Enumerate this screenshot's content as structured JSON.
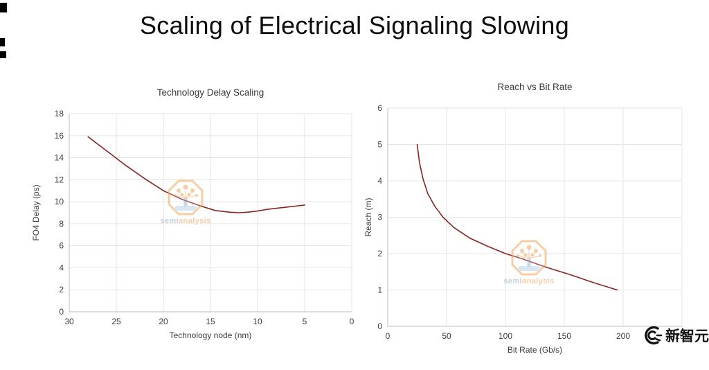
{
  "page": {
    "title": "Scaling of Electrical Signaling Slowing",
    "background": "#ffffff"
  },
  "watermark": {
    "name": "semianalysis",
    "text_semi": "semi",
    "text_analysis": "analysis",
    "accent_orange": "#f2a65a",
    "accent_blue": "#9db6cc"
  },
  "brand": {
    "text": "新智元"
  },
  "chart_data": [
    {
      "type": "line",
      "title": "Technology Delay Scaling",
      "xlabel": "Technology node (nm)",
      "ylabel": "FO4 Delay (ps)",
      "xlim": [
        30,
        0
      ],
      "ylim": [
        0,
        18
      ],
      "xticks": [
        30,
        25,
        20,
        15,
        10,
        5,
        0
      ],
      "yticks": [
        0,
        2,
        4,
        6,
        8,
        10,
        12,
        14,
        16,
        18
      ],
      "grid": true,
      "legend": false,
      "line_color": "#8b2222",
      "series": [
        {
          "name": "FO4 delay",
          "x": [
            28,
            26,
            24,
            22,
            20,
            18,
            16,
            14.5,
            13,
            12,
            11,
            10,
            9,
            8,
            7,
            6,
            5
          ],
          "y": [
            15.9,
            14.6,
            13.3,
            12.1,
            11.0,
            10.2,
            9.6,
            9.2,
            9.05,
            9.0,
            9.05,
            9.15,
            9.3,
            9.4,
            9.5,
            9.6,
            9.7
          ]
        }
      ]
    },
    {
      "type": "line",
      "title": "Reach vs Bit Rate",
      "xlabel": "Bit Rate (Gb/s)",
      "ylabel": "Reach (m)",
      "xlim": [
        0,
        250
      ],
      "ylim": [
        0,
        6
      ],
      "xticks": [
        0,
        50,
        100,
        150,
        200,
        250
      ],
      "yticks": [
        0,
        1,
        2,
        3,
        4,
        5,
        6
      ],
      "grid": true,
      "legend": false,
      "line_color": "#8b2222",
      "series": [
        {
          "name": "Reach",
          "x": [
            25,
            27,
            30,
            34,
            40,
            47,
            56,
            70,
            85,
            100,
            115,
            135,
            155,
            175,
            195
          ],
          "y": [
            5.0,
            4.5,
            4.05,
            3.65,
            3.3,
            3.0,
            2.72,
            2.42,
            2.2,
            2.0,
            1.85,
            1.62,
            1.42,
            1.2,
            1.0
          ]
        }
      ]
    }
  ]
}
